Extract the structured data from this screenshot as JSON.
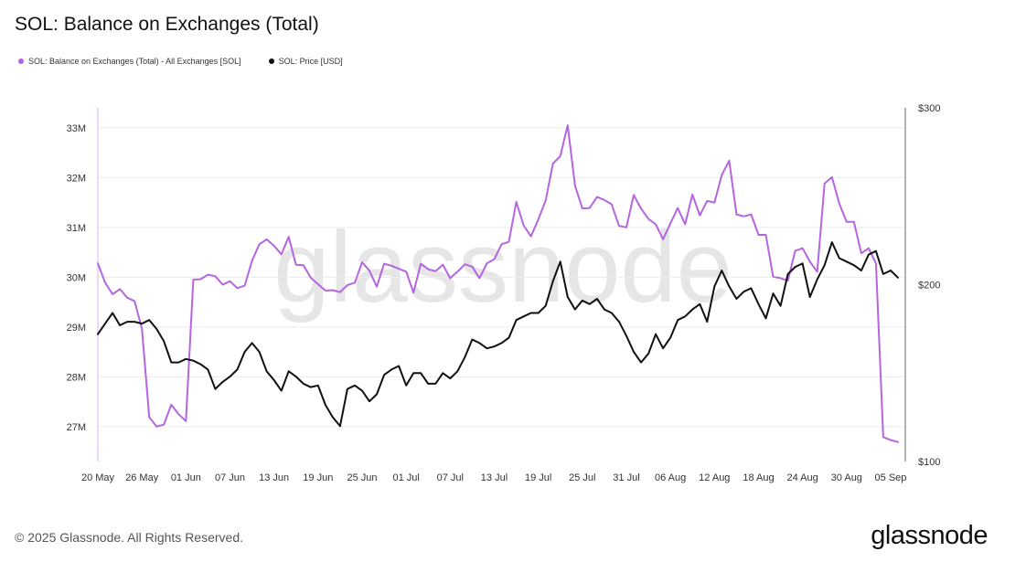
{
  "chart_data": {
    "type": "line",
    "title": "SOL: Balance on Exchanges (Total)",
    "watermark": "glassnode",
    "x_tick_labels": [
      "20 May",
      "26 May",
      "01 Jun",
      "07 Jun",
      "13 Jun",
      "19 Jun",
      "25 Jun",
      "01 Jul",
      "07 Jul",
      "13 Jul",
      "19 Jul",
      "25 Jul",
      "31 Jul",
      "06 Aug",
      "12 Aug",
      "18 Aug",
      "24 Aug",
      "30 Aug",
      "05 Sep"
    ],
    "y_left": {
      "ticks": [
        27,
        28,
        29,
        30,
        31,
        32,
        33
      ],
      "tick_labels": [
        "27M",
        "28M",
        "29M",
        "30M",
        "31M",
        "32M",
        "33M"
      ],
      "range": [
        26.3,
        33.4
      ]
    },
    "y_right": {
      "ticks": [
        100,
        200,
        300
      ],
      "tick_labels": [
        "$100",
        "$200",
        "$300"
      ],
      "range": [
        100,
        300
      ]
    },
    "grid": true,
    "legend_position": "top-left",
    "series": [
      {
        "name": "SOL: Balance on Exchanges (Total) - All Exchanges [SOL]",
        "axis": "left",
        "color": "#b565e0",
        "values": [
          30.28,
          29.89,
          29.66,
          29.76,
          29.59,
          29.52,
          28.97,
          27.19,
          27.0,
          27.04,
          27.44,
          27.25,
          27.11,
          29.95,
          29.96,
          30.05,
          30.02,
          29.85,
          29.92,
          29.78,
          29.83,
          30.33,
          30.66,
          30.76,
          30.63,
          30.46,
          30.81,
          30.25,
          30.24,
          29.99,
          29.86,
          29.73,
          29.74,
          29.7,
          29.84,
          29.89,
          30.3,
          30.13,
          29.81,
          30.27,
          30.23,
          30.17,
          30.11,
          29.69,
          30.27,
          30.16,
          30.12,
          30.25,
          29.98,
          30.11,
          30.26,
          30.21,
          29.98,
          30.28,
          30.36,
          30.66,
          30.71,
          31.51,
          31.04,
          30.82,
          31.16,
          31.54,
          32.28,
          32.43,
          33.05,
          31.84,
          31.38,
          31.39,
          31.61,
          31.55,
          31.46,
          31.03,
          31.0,
          31.65,
          31.38,
          31.17,
          31.06,
          30.76,
          31.08,
          31.39,
          31.06,
          31.66,
          31.24,
          31.53,
          31.5,
          32.05,
          32.34,
          31.26,
          31.22,
          31.26,
          30.85,
          30.85,
          30.01,
          29.98,
          29.93,
          30.53,
          30.58,
          30.31,
          30.11,
          31.88,
          32.01,
          31.48,
          31.11,
          31.11,
          30.48,
          30.58,
          30.28,
          26.79,
          26.73,
          26.69
        ]
      },
      {
        "name": "SOL: Price [USD]",
        "axis": "right",
        "color": "#111111",
        "values": [
          172,
          178,
          184,
          177,
          179,
          179,
          178,
          180,
          175,
          168,
          156,
          156,
          158,
          157,
          155,
          152,
          141,
          145,
          148,
          152,
          162,
          167,
          162,
          151,
          146,
          140,
          151,
          148,
          144,
          142,
          143,
          132,
          125,
          120,
          141,
          143,
          140,
          134,
          138,
          149,
          152,
          154,
          143,
          150,
          150,
          144,
          144,
          150,
          147,
          151,
          159,
          169,
          167,
          164,
          165,
          167,
          170,
          180,
          182,
          184,
          184,
          188,
          202,
          213,
          193,
          186,
          191,
          189,
          192,
          186,
          184,
          179,
          171,
          162,
          156,
          161,
          172,
          164,
          170,
          180,
          182,
          186,
          189,
          179,
          199,
          208,
          199,
          192,
          196,
          198,
          189,
          181,
          195,
          188,
          206,
          210,
          212,
          193,
          203,
          211,
          224,
          215,
          213,
          211,
          208,
          217,
          219,
          206,
          208,
          204
        ]
      }
    ]
  },
  "footer": {
    "copyright": "© 2025 Glassnode. All Rights Reserved.",
    "logo_text": "glassnode"
  }
}
